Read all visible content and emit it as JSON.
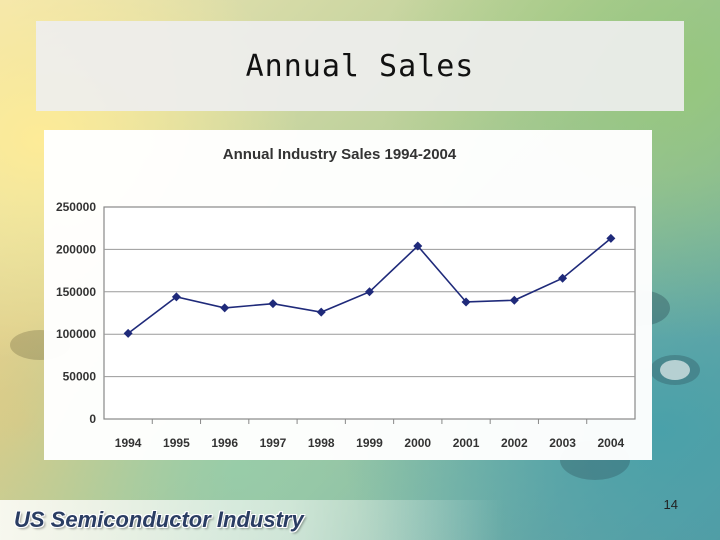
{
  "slide": {
    "title": "Annual Sales",
    "page_number": "14",
    "footer": "US Semiconductor Industry"
  },
  "colors": {
    "series_line": "#1f2a7a",
    "marker": "#1f2a7a",
    "gridline": "#9a9a9a",
    "plot_border": "#888888",
    "plot_bg": "#ffffff",
    "footer_text": "#2a3d63"
  },
  "chart_data": {
    "type": "line",
    "title": "Annual Industry Sales 1994-2004",
    "xlabel": "",
    "ylabel": "",
    "categories": [
      "1994",
      "1995",
      "1996",
      "1997",
      "1998",
      "1999",
      "2000",
      "2001",
      "2002",
      "2003",
      "2004"
    ],
    "series": [
      {
        "values": [
          101000,
          144000,
          131000,
          136000,
          126000,
          150000,
          204000,
          138000,
          140000,
          166000,
          213000
        ]
      }
    ],
    "ylim": [
      0,
      250000
    ],
    "yticks": [
      0,
      50000,
      100000,
      150000,
      200000,
      250000
    ],
    "ytick_labels": [
      "0",
      "50000",
      "100000",
      "150000",
      "200000",
      "250000"
    ],
    "grid": true,
    "legend": "none",
    "marker": "diamond"
  }
}
